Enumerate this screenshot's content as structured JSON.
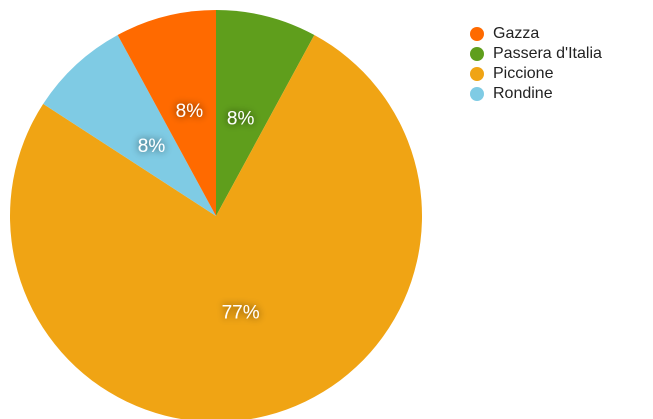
{
  "chart_data": {
    "type": "pie",
    "categories": [
      "Gazza",
      "Passera d'Italia",
      "Piccione",
      "Rondine"
    ],
    "values": [
      8,
      8,
      77,
      8
    ],
    "value_labels": [
      "8%",
      "8%",
      "77%",
      "8%"
    ],
    "colors": [
      "#ff6a00",
      "#5f9e1c",
      "#f0a414",
      "#7fcbe4"
    ],
    "slice_order": [
      "Passera d'Italia",
      "Piccione",
      "Rondine",
      "Gazza"
    ],
    "start": "top",
    "direction": "clockwise",
    "legend": {
      "position": "right",
      "entries": [
        {
          "label": "Gazza",
          "color": "#ff6a00"
        },
        {
          "label": "Passera d'Italia",
          "color": "#5f9e1c"
        },
        {
          "label": "Piccione",
          "color": "#f0a414"
        },
        {
          "label": "Rondine",
          "color": "#7fcbe4"
        }
      ]
    }
  }
}
